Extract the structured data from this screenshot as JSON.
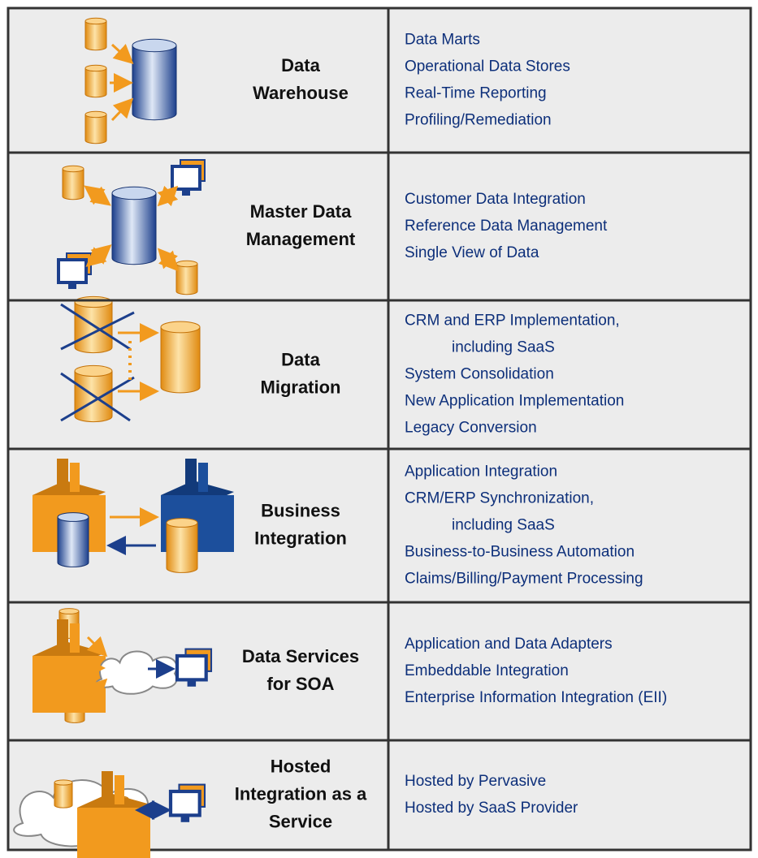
{
  "rows": [
    {
      "title": [
        "Data",
        "Warehouse"
      ],
      "items": [
        [
          "Data Marts"
        ],
        [
          "Operational Data Stores"
        ],
        [
          "Real-Time Reporting"
        ],
        [
          "Profiling/Remediation"
        ]
      ]
    },
    {
      "title": [
        "Master Data",
        "Management"
      ],
      "items": [
        [
          "Customer Data Integration"
        ],
        [
          "Reference Data Management"
        ],
        [
          "Single View of Data"
        ]
      ]
    },
    {
      "title": [
        "Data",
        "Migration"
      ],
      "items": [
        [
          "CRM and ERP Implementation,",
          "including SaaS"
        ],
        [
          "System Consolidation"
        ],
        [
          "New Application Implementation"
        ],
        [
          "Legacy Conversion"
        ]
      ]
    },
    {
      "title": [
        "Business",
        "Integration"
      ],
      "items": [
        [
          "Application Integration"
        ],
        [
          "CRM/ERP Synchronization,",
          "including SaaS"
        ],
        [
          "Business-to-Business Automation"
        ],
        [
          "Claims/Billing/Payment Processing"
        ]
      ]
    },
    {
      "title": [
        "Data Services",
        "for SOA"
      ],
      "items": [
        [
          "Application and Data Adapters"
        ],
        [
          "Embeddable Integration"
        ],
        [
          "Enterprise Information Integration (EII)"
        ]
      ]
    },
    {
      "title": [
        "Hosted",
        "Integration as a",
        "Service"
      ],
      "items": [
        [
          "Hosted by Pervasive"
        ],
        [
          "Hosted by SaaS Provider"
        ]
      ]
    }
  ]
}
